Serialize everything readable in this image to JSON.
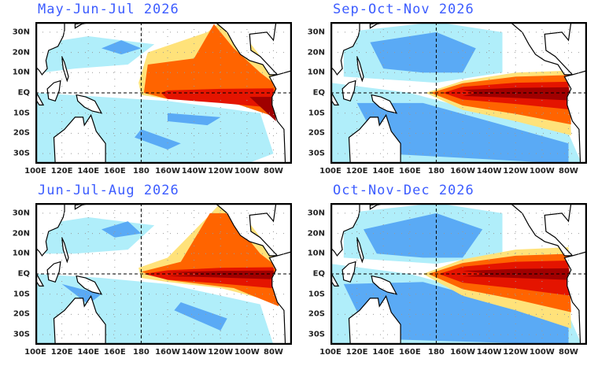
{
  "panels": [
    {
      "title": "May-Jun-Jul 2026",
      "variant": "mjj"
    },
    {
      "title": "Sep-Oct-Nov 2026",
      "variant": "son"
    },
    {
      "title": "Jun-Jul-Aug 2026",
      "variant": "jja"
    },
    {
      "title": "Oct-Nov-Dec 2026",
      "variant": "ond"
    }
  ],
  "lat_labels": [
    "30N",
    "20N",
    "10N",
    "EQ",
    "10S",
    "20S",
    "30S"
  ],
  "lon_labels": [
    "100E",
    "120E",
    "140E",
    "160E",
    "180",
    "160W",
    "140W",
    "120W",
    "100W",
    "80W"
  ],
  "colors": {
    "light_cyan": "#b0eefa",
    "blue": "#5aaaf5",
    "deep_blue": "#2878e6",
    "pale_yellow": "#ffe27a",
    "orange": "#ff6400",
    "red": "#e41400",
    "dark_red": "#a00000",
    "title": "#3c5cff"
  }
}
